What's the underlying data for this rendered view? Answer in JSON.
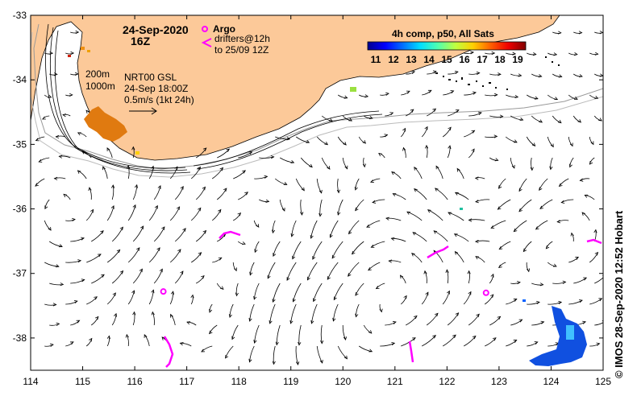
{
  "map": {
    "lon_min": 114,
    "lon_max": 125,
    "lat_min": -38.5,
    "lat_max": -33,
    "x_ticks": [
      "114",
      "115",
      "116",
      "117",
      "118",
      "119",
      "120",
      "121",
      "122",
      "123",
      "124",
      "125"
    ],
    "y_ticks": [
      "-33",
      "-34",
      "-35",
      "-36",
      "-37",
      "-38"
    ],
    "land_color": "#fcc999",
    "arrow_color": "#000000",
    "drifter_color": "#ff00ff"
  },
  "labels": {
    "date": "24-Sep-2020",
    "time": "16Z",
    "depth_200": "200m",
    "depth_1000": "1000m",
    "product": "NRT00 GSL",
    "product_time": "24-Sep 18:00Z",
    "scale": "0.5m/s (1kt 24h)",
    "argo": "Argo",
    "drifters_1": "drifters@12h",
    "drifters_2": "to 25/09 12Z",
    "credit": "© IMOS 28-Sep-2020 12:52 Hobart"
  },
  "colorbar": {
    "title": "4h comp, p50, All Sats",
    "ticks": [
      "11",
      "12",
      "13",
      "14",
      "15",
      "16",
      "17",
      "18",
      "19"
    ],
    "colors": [
      "#00008f",
      "#0000ff",
      "#006fff",
      "#00dfff",
      "#50ffaf",
      "#bfff40",
      "#ffcf00",
      "#ff6000",
      "#ef0000",
      "#800000"
    ]
  },
  "argo_floats": [
    {
      "lon": 116.55,
      "lat": -37.28
    },
    {
      "lon": 122.75,
      "lat": -37.3
    }
  ]
}
